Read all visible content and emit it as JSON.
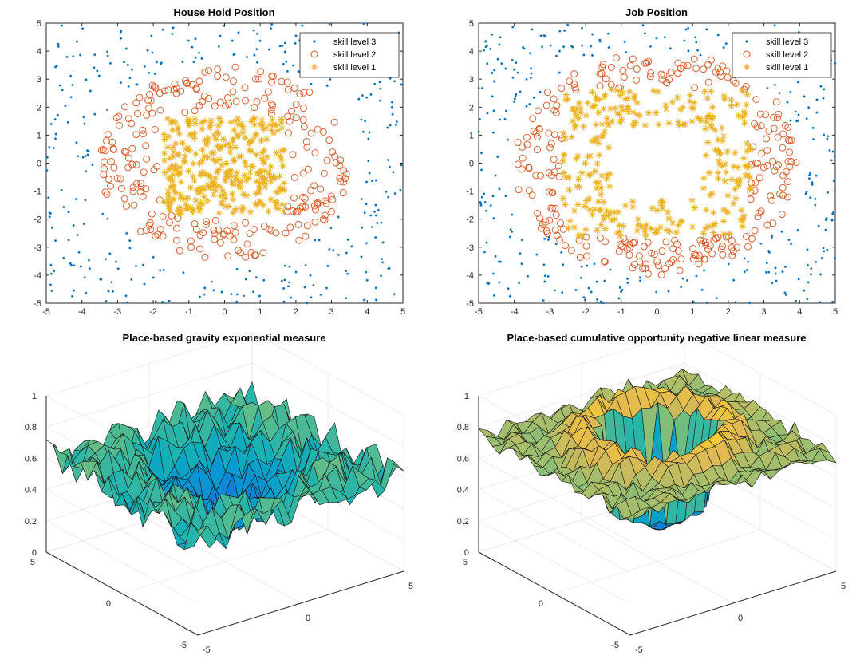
{
  "chart_data": [
    {
      "type": "scatter",
      "title": "House Hold Position",
      "xlim": [
        -5,
        5
      ],
      "ylim": [
        -5,
        5
      ],
      "xticks": [
        -5,
        -4,
        -3,
        -2,
        -1,
        0,
        1,
        2,
        3,
        4,
        5
      ],
      "yticks": [
        -5,
        -4,
        -3,
        -2,
        -1,
        0,
        1,
        2,
        3,
        4,
        5
      ],
      "grid": false,
      "legend_position": "top-right",
      "series": [
        {
          "name": "skill level 3",
          "marker": "dot",
          "color": "#0072BD",
          "count": 310,
          "region": "uniform over [-5,5]x[-5,5] outside radius 4 (skewed square)"
        },
        {
          "name": "skill level 2",
          "marker": "circle",
          "color": "#D95319",
          "count": 250,
          "region": "ring between square |x|,|y|<1.7 and radius 3.5"
        },
        {
          "name": "skill level 1",
          "marker": "star",
          "color": "#EDB120",
          "count": 320,
          "region": "filled square x in [-1.7,1.7], y in [-1.7,1.6]"
        }
      ]
    },
    {
      "type": "scatter",
      "title": "Job Position",
      "xlim": [
        -5,
        5
      ],
      "ylim": [
        -5,
        5
      ],
      "xticks": [
        -5,
        -4,
        -3,
        -2,
        -1,
        0,
        1,
        2,
        3,
        4,
        5
      ],
      "yticks": [
        -5,
        -4,
        -3,
        -2,
        -1,
        0,
        1,
        2,
        3,
        4,
        5
      ],
      "grid": false,
      "legend_position": "top-right",
      "series": [
        {
          "name": "skill level 3",
          "marker": "dot",
          "color": "#0072BD",
          "count": 310,
          "region": "outer band beyond radius ~4"
        },
        {
          "name": "skill level 2",
          "marker": "circle",
          "color": "#D95319",
          "count": 260,
          "region": "ring between radius ~2.6 and ~3.9"
        },
        {
          "name": "skill level 1",
          "marker": "star",
          "color": "#EDB120",
          "count": 300,
          "region": "hollow band between inner square 1.2 and outer 2.6"
        }
      ]
    },
    {
      "type": "surface",
      "title": "Place-based gravity exponential measure",
      "zlim": [
        0,
        1
      ],
      "zticks": [
        "0",
        "0.2",
        "0.4",
        "0.6",
        "0.8",
        "1"
      ],
      "xticks": [
        "-5",
        "0",
        "5"
      ],
      "yticks": [
        "-5",
        "0",
        "5"
      ],
      "colormap": "parula",
      "shape": "bowl",
      "rim_value": 0.6,
      "center_min": 0.25,
      "noise": 0.12
    },
    {
      "type": "surface",
      "title": "Place-based cumulative opportunity negative linear measure",
      "zlim": [
        0,
        1
      ],
      "zticks": [
        "0",
        "0.2",
        "0.4",
        "0.6",
        "0.8",
        "1"
      ],
      "xticks": [
        "-5",
        "0",
        "5"
      ],
      "yticks": [
        "-5",
        "0",
        "5"
      ],
      "colormap": "parula",
      "shape": "ring",
      "rim_value": 0.75,
      "ring_peak": 0.9,
      "center_min": 0.2,
      "noise": 0.06
    }
  ]
}
